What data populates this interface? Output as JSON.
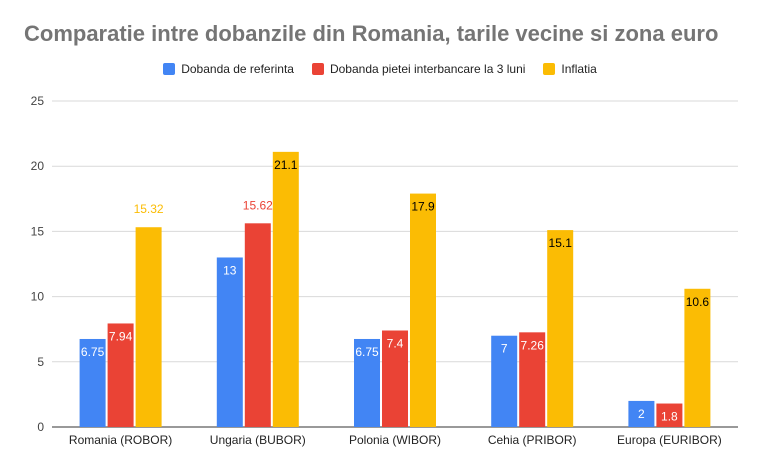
{
  "colors": {
    "series": [
      "#4285f4",
      "#ea4335",
      "#fbbc04"
    ],
    "grid": "#d9d9d9",
    "axis": "#333333",
    "title": "#757575"
  },
  "chart_data": {
    "type": "bar",
    "title": "Comparatie intre dobanzile din Romania, tarile vecine si zona euro",
    "xlabel": "",
    "ylabel": "",
    "ylim": [
      0,
      25
    ],
    "yticks": [
      0,
      5,
      10,
      15,
      20,
      25
    ],
    "grid": true,
    "legend_position": "top",
    "categories": [
      "Romania (ROBOR)",
      "Ungaria (BUBOR)",
      "Polonia (WIBOR)",
      "Cehia (PRIBOR)",
      "Europa (EURIBOR)"
    ],
    "series": [
      {
        "name": "Dobanda de referinta",
        "values": [
          6.75,
          13,
          6.75,
          7,
          2
        ],
        "labels": [
          "6.75",
          "13",
          "6.75",
          "7",
          "2"
        ]
      },
      {
        "name": "Dobanda pietei interbancare la 3 luni",
        "values": [
          7.94,
          15.62,
          7.4,
          7.26,
          1.8
        ],
        "labels": [
          "7.94",
          "15.62",
          "7.4",
          "7.26",
          "1.8"
        ]
      },
      {
        "name": "Inflatia",
        "values": [
          15.32,
          21.1,
          17.9,
          15.1,
          10.6
        ],
        "labels": [
          "15.32",
          "21.1",
          "17.9",
          "15.1",
          "10.6"
        ]
      }
    ]
  }
}
